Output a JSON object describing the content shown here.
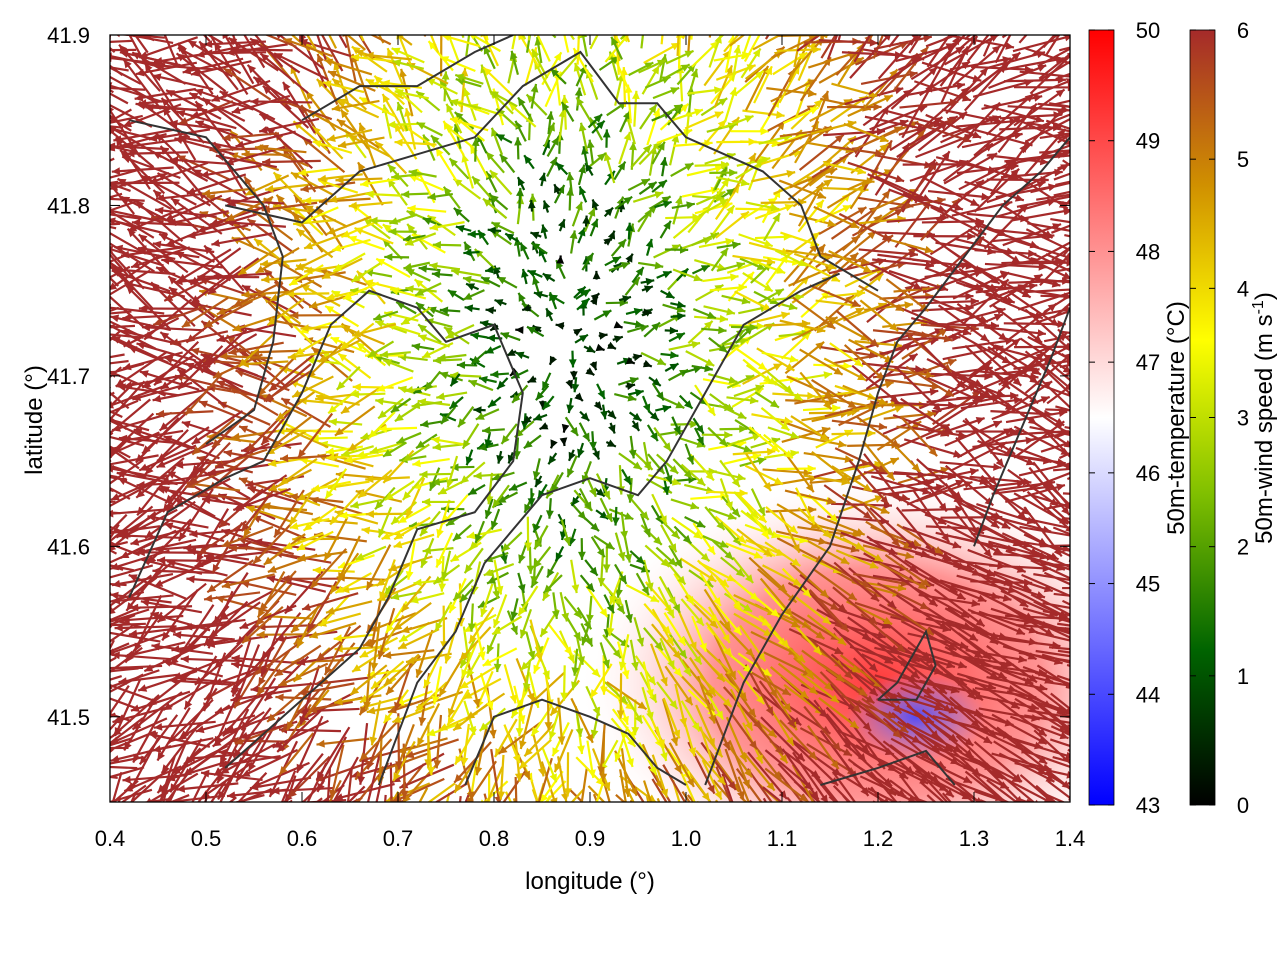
{
  "chart_data": {
    "type": "vector-field",
    "title": "",
    "xlabel": "longitude (°)",
    "ylabel": "latitude (°)",
    "xlim": [
      0.4,
      1.4
    ],
    "ylim": [
      41.45,
      41.9
    ],
    "x_ticks": [
      "0.4",
      "0.5",
      "0.6",
      "0.7",
      "0.8",
      "0.9",
      "1.0",
      "1.1",
      "1.2",
      "1.3",
      "1.4"
    ],
    "y_ticks": [
      "41.5",
      "41.6",
      "41.7",
      "41.8",
      "41.9"
    ],
    "grid": false,
    "background_field": {
      "name": "50m-temperature",
      "label": "50m-temperature (°C)",
      "range": [
        43,
        50
      ],
      "ticks": [
        "43",
        "44",
        "45",
        "46",
        "47",
        "48",
        "49",
        "50"
      ],
      "palette": [
        "#0000ff",
        "#ffffff",
        "#ff0000"
      ],
      "hot_region_center": [
        1.2,
        41.52
      ],
      "cold_patch_center": [
        1.24,
        41.5
      ]
    },
    "vector_field": {
      "name": "50m-wind speed",
      "label_main": "50m-wind speed (m s",
      "label_sup": "-1",
      "label_end": ")",
      "range": [
        0,
        6
      ],
      "ticks": [
        "0",
        "1",
        "2",
        "3",
        "4",
        "5",
        "6"
      ],
      "palette": [
        "#000000",
        "#006400",
        "#7fbf00",
        "#ffff00",
        "#d09000",
        "#a52a2a"
      ],
      "calm_center": [
        0.88,
        41.72
      ],
      "flow": "divergent outflow from calm center"
    },
    "contours": [
      [
        [
          0.42,
          41.85
        ],
        [
          0.5,
          41.84
        ],
        [
          0.56,
          41.8
        ],
        [
          0.58,
          41.77
        ],
        [
          0.57,
          41.72
        ],
        [
          0.55,
          41.68
        ],
        [
          0.5,
          41.66
        ]
      ],
      [
        [
          0.42,
          41.57
        ],
        [
          0.46,
          41.62
        ],
        [
          0.52,
          41.64
        ],
        [
          0.56,
          41.65
        ],
        [
          0.6,
          41.69
        ],
        [
          0.63,
          41.73
        ],
        [
          0.67,
          41.75
        ],
        [
          0.72,
          41.74
        ],
        [
          0.75,
          41.72
        ],
        [
          0.8,
          41.73
        ],
        [
          0.83,
          41.69
        ],
        [
          0.82,
          41.65
        ],
        [
          0.78,
          41.62
        ],
        [
          0.72,
          41.61
        ],
        [
          0.69,
          41.57
        ],
        [
          0.66,
          41.54
        ],
        [
          0.62,
          41.52
        ],
        [
          0.58,
          41.5
        ],
        [
          0.52,
          41.47
        ]
      ],
      [
        [
          0.52,
          41.8
        ],
        [
          0.6,
          41.79
        ],
        [
          0.66,
          41.82
        ],
        [
          0.72,
          41.83
        ],
        [
          0.78,
          41.84
        ],
        [
          0.83,
          41.87
        ],
        [
          0.89,
          41.89
        ],
        [
          0.93,
          41.86
        ],
        [
          0.97,
          41.86
        ],
        [
          1.0,
          41.84
        ],
        [
          1.04,
          41.83
        ],
        [
          1.08,
          41.82
        ],
        [
          1.12,
          41.8
        ],
        [
          1.14,
          41.77
        ],
        [
          1.17,
          41.76
        ],
        [
          1.2,
          41.75
        ]
      ],
      [
        [
          0.77,
          41.46
        ],
        [
          0.8,
          41.5
        ],
        [
          0.85,
          41.51
        ],
        [
          0.9,
          41.5
        ],
        [
          0.94,
          41.49
        ],
        [
          0.97,
          41.47
        ],
        [
          1.0,
          41.46
        ]
      ],
      [
        [
          0.68,
          41.46
        ],
        [
          0.72,
          41.52
        ],
        [
          0.76,
          41.55
        ],
        [
          0.79,
          41.59
        ],
        [
          0.85,
          41.63
        ],
        [
          0.9,
          41.64
        ],
        [
          0.95,
          41.63
        ],
        [
          0.98,
          41.65
        ],
        [
          1.03,
          41.7
        ],
        [
          1.06,
          41.73
        ],
        [
          1.09,
          41.74
        ],
        [
          1.12,
          41.75
        ],
        [
          1.16,
          41.76
        ]
      ],
      [
        [
          1.02,
          41.46
        ],
        [
          1.06,
          41.52
        ],
        [
          1.1,
          41.56
        ],
        [
          1.15,
          41.6
        ],
        [
          1.18,
          41.65
        ],
        [
          1.2,
          41.69
        ],
        [
          1.22,
          41.72
        ],
        [
          1.25,
          41.74
        ],
        [
          1.29,
          41.77
        ],
        [
          1.33,
          41.8
        ],
        [
          1.37,
          41.82
        ],
        [
          1.4,
          41.84
        ]
      ],
      [
        [
          1.14,
          41.46
        ],
        [
          1.2,
          41.47
        ],
        [
          1.25,
          41.48
        ],
        [
          1.28,
          41.46
        ]
      ],
      [
        [
          1.2,
          41.51
        ],
        [
          1.24,
          41.51
        ],
        [
          1.26,
          41.53
        ],
        [
          1.25,
          41.55
        ],
        [
          1.22,
          41.52
        ],
        [
          1.2,
          41.51
        ]
      ],
      [
        [
          1.3,
          41.6
        ],
        [
          1.32,
          41.63
        ],
        [
          1.35,
          41.67
        ],
        [
          1.38,
          41.71
        ],
        [
          1.4,
          41.74
        ]
      ],
      [
        [
          0.6,
          41.85
        ],
        [
          0.66,
          41.87
        ],
        [
          0.72,
          41.87
        ],
        [
          0.78,
          41.89
        ],
        [
          0.82,
          41.9
        ]
      ]
    ]
  }
}
